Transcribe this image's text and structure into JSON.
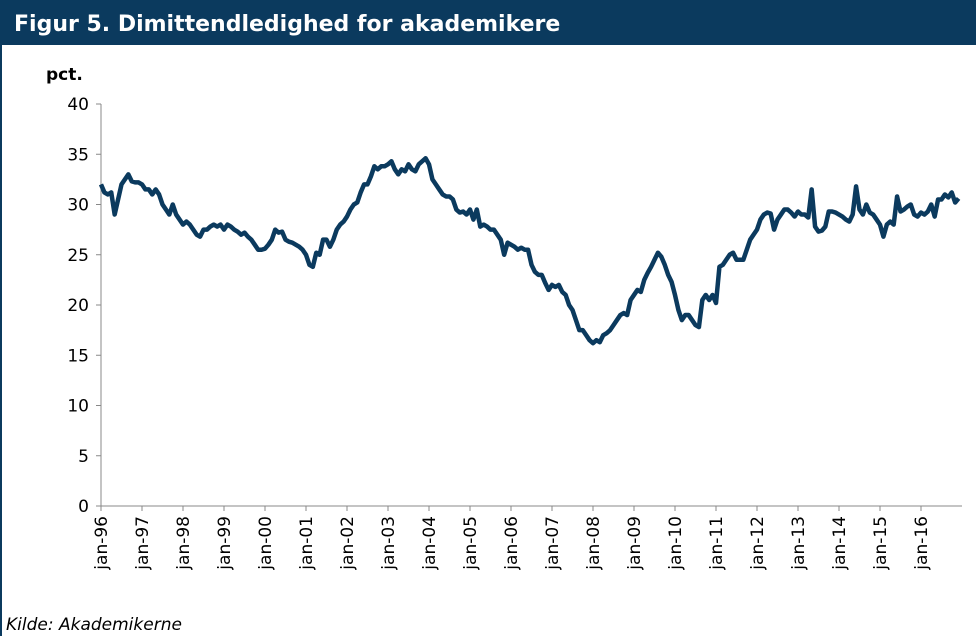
{
  "chart_data": {
    "type": "line",
    "title": "Figur 5. Dimittendledighed for akademikere",
    "y_label": "pct.",
    "source": "Kilde: Akademikerne",
    "categories": [
      "jan-96",
      null,
      null,
      null,
      null,
      null,
      null,
      null,
      null,
      null,
      null,
      null,
      "jan-97",
      null,
      null,
      null,
      null,
      null,
      null,
      null,
      null,
      null,
      null,
      null,
      "jan-98",
      null,
      null,
      null,
      null,
      null,
      null,
      null,
      null,
      null,
      null,
      null,
      "jan-99",
      null,
      null,
      null,
      null,
      null,
      null,
      null,
      null,
      null,
      null,
      null,
      "jan-00",
      null,
      null,
      null,
      null,
      null,
      null,
      null,
      null,
      null,
      null,
      null,
      "jan-01",
      null,
      null,
      null,
      null,
      null,
      null,
      null,
      null,
      null,
      null,
      null,
      "jan-02",
      null,
      null,
      null,
      null,
      null,
      null,
      null,
      null,
      null,
      null,
      null,
      "jan-03",
      null,
      null,
      null,
      null,
      null,
      null,
      null,
      null,
      null,
      null,
      null,
      "jan-04",
      null,
      null,
      null,
      null,
      null,
      null,
      null,
      null,
      null,
      null,
      null,
      "jan-05",
      null,
      null,
      null,
      null,
      null,
      null,
      null,
      null,
      null,
      null,
      null,
      "jan-06",
      null,
      null,
      null,
      null,
      null,
      null,
      null,
      null,
      null,
      null,
      null,
      "jan-07",
      null,
      null,
      null,
      null,
      null,
      null,
      null,
      null,
      null,
      null,
      null,
      "jan-08",
      null,
      null,
      null,
      null,
      null,
      null,
      null,
      null,
      null,
      null,
      null,
      "jan-09",
      null,
      null,
      null,
      null,
      null,
      null,
      null,
      null,
      null,
      null,
      null,
      "jan-10",
      null,
      null,
      null,
      null,
      null,
      null,
      null,
      null,
      null,
      null,
      null,
      "jan-11",
      null,
      null,
      null,
      null,
      null,
      null,
      null,
      null,
      null,
      null,
      null,
      "jan-12",
      null,
      null,
      null,
      null,
      null,
      null,
      null,
      null,
      null,
      null,
      null,
      "jan-13",
      null,
      null,
      null,
      null,
      null,
      null,
      null,
      null,
      null,
      null,
      null,
      "jan-14",
      null,
      null,
      null,
      null,
      null,
      null,
      null,
      null,
      null,
      null,
      null,
      "jan-15",
      null,
      null,
      null,
      null,
      null,
      null,
      null,
      null,
      null,
      null,
      null,
      "jan-16",
      null,
      null,
      null,
      null,
      null,
      null,
      null,
      null,
      null,
      null,
      null
    ],
    "series": [
      {
        "name": "Dimittendledighed",
        "color": "#0b3a5e",
        "values": [
          32,
          31.2,
          31,
          31.2,
          29,
          30.5,
          32,
          32.5,
          33,
          32.3,
          32.2,
          32.2,
          32,
          31.5,
          31.5,
          31,
          31.5,
          31,
          30,
          29.5,
          29,
          30,
          29,
          28.5,
          28,
          28.3,
          28,
          27.5,
          27,
          26.8,
          27.5,
          27.5,
          27.8,
          28,
          27.8,
          28,
          27.5,
          28,
          27.8,
          27.5,
          27.3,
          27,
          27.2,
          26.8,
          26.5,
          26,
          25.5,
          25.5,
          25.6,
          26,
          26.5,
          27.5,
          27.2,
          27.3,
          26.5,
          26.3,
          26.2,
          26,
          25.8,
          25.5,
          25,
          24,
          23.8,
          25.2,
          25,
          26.5,
          26.5,
          25.8,
          26.5,
          27.5,
          28,
          28.3,
          28.8,
          29.5,
          30,
          30.2,
          31.2,
          32,
          32,
          32.8,
          33.8,
          33.5,
          33.8,
          33.8,
          34,
          34.3,
          33.5,
          33,
          33.5,
          33.3,
          34,
          33.5,
          33.3,
          34,
          34.3,
          34.6,
          34,
          32.5,
          32,
          31.5,
          31,
          30.8,
          30.8,
          30.5,
          29.5,
          29.2,
          29.3,
          29,
          29.5,
          28.5,
          29.5,
          27.8,
          28,
          27.8,
          27.5,
          27.5,
          27,
          26.5,
          25,
          26.2,
          26,
          25.8,
          25.5,
          25.7,
          25.5,
          25.5,
          24,
          23.3,
          23,
          23,
          22.2,
          21.5,
          22,
          21.8,
          22,
          21.3,
          21,
          20,
          19.5,
          18.5,
          17.5,
          17.5,
          17,
          16.5,
          16.2,
          16.5,
          16.3,
          17,
          17.2,
          17.5,
          18,
          18.5,
          19,
          19.2,
          19,
          20.5,
          21,
          21.5,
          21.3,
          22.5,
          23.2,
          23.8,
          24.5,
          25.2,
          24.8,
          24,
          23,
          22.3,
          21,
          19.5,
          18.5,
          19,
          19,
          18.5,
          18,
          17.8,
          20.5,
          21,
          20.5,
          21,
          20.2,
          23.8,
          24,
          24.5,
          25,
          25.2,
          24.5,
          24.5,
          24.5,
          25.5,
          26.5,
          27,
          27.5,
          28.5,
          29,
          29.2,
          29.1,
          27.5,
          28.5,
          29,
          29.5,
          29.5,
          29.2,
          28.8,
          29.3,
          29,
          29,
          28.7,
          31.5,
          27.8,
          27.3,
          27.4,
          27.8,
          29.3,
          29.3,
          29.2,
          29,
          28.8,
          28.5,
          28.3,
          29,
          31.8,
          29.5,
          29,
          30,
          29.2,
          29,
          28.5,
          28,
          26.8,
          28,
          28.3,
          28,
          30.8,
          29.3,
          29.5,
          29.8,
          30,
          29,
          28.8,
          29.2,
          29,
          29.3,
          30,
          28.8,
          30.5,
          30.5,
          31,
          30.7,
          31.2,
          30.2,
          30.6
        ]
      }
    ],
    "ylim": [
      0,
      40
    ],
    "yticks": [
      0,
      5,
      10,
      15,
      20,
      25,
      30,
      35,
      40
    ],
    "grid": false
  }
}
